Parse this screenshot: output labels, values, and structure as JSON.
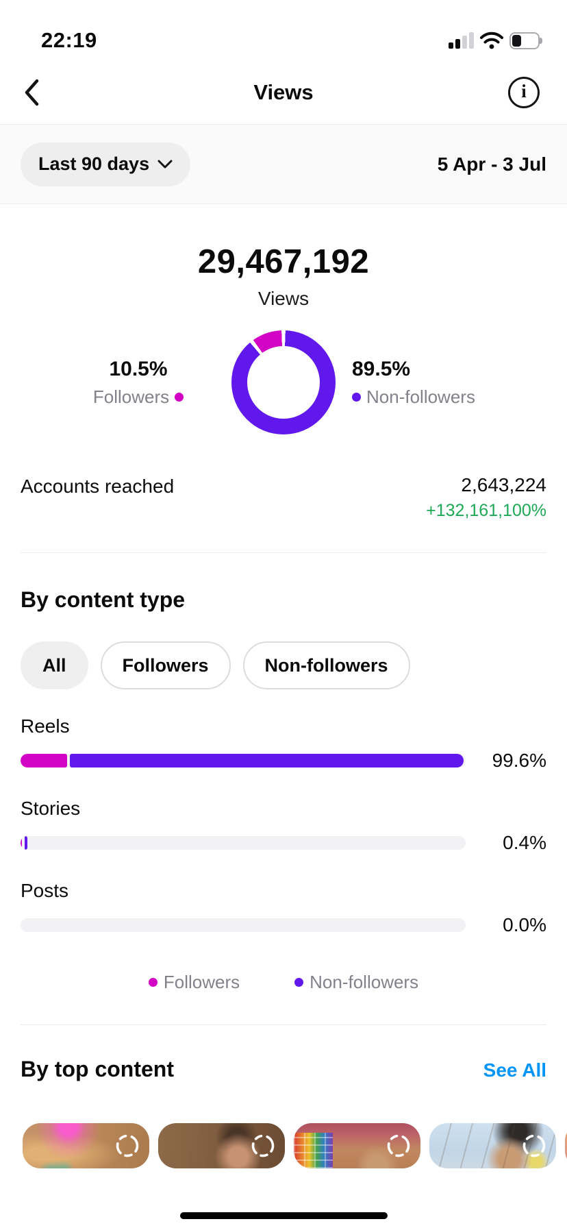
{
  "colors": {
    "followers": "#d203c4",
    "non_followers": "#6018ec",
    "positive": "#1da955",
    "link": "#0095f6"
  },
  "status_bar": {
    "time": "22:19",
    "battery_level": 35
  },
  "header": {
    "title": "Views",
    "info_glyph": "i"
  },
  "filter_bar": {
    "range_button": "Last 90 days",
    "date_range": "5 Apr - 3 Jul"
  },
  "summary": {
    "value": "29,467,192",
    "label": "Views"
  },
  "breakdown": {
    "followers": {
      "pct": "10.5%",
      "label": "Followers",
      "value": 10.5
    },
    "non_followers": {
      "pct": "89.5%",
      "label": "Non-followers",
      "value": 89.5
    }
  },
  "accounts_reached": {
    "label": "Accounts reached",
    "value": "2,643,224",
    "change": "+132,161,100%"
  },
  "by_content_type": {
    "title": "By content type",
    "tabs": [
      {
        "label": "All",
        "selected": true
      },
      {
        "label": "Followers",
        "selected": false
      },
      {
        "label": "Non-followers",
        "selected": false
      }
    ],
    "rows": [
      {
        "label": "Reels",
        "pct": "99.6%",
        "segments": [
          {
            "color": "followers",
            "width": 10.5
          },
          {
            "color": "non_followers",
            "width": 88.4
          }
        ]
      },
      {
        "label": "Stories",
        "pct": "0.4%",
        "segments": [
          {
            "color": "followers",
            "width": 0.35
          },
          {
            "color": "non_followers",
            "width": 0.5
          }
        ]
      },
      {
        "label": "Posts",
        "pct": "0.0%",
        "segments": []
      }
    ],
    "legend": [
      {
        "label": "Followers",
        "color": "followers"
      },
      {
        "label": "Non-followers",
        "color": "non_followers"
      }
    ]
  },
  "by_top_content": {
    "title": "By top content",
    "see_all": "See All"
  }
}
